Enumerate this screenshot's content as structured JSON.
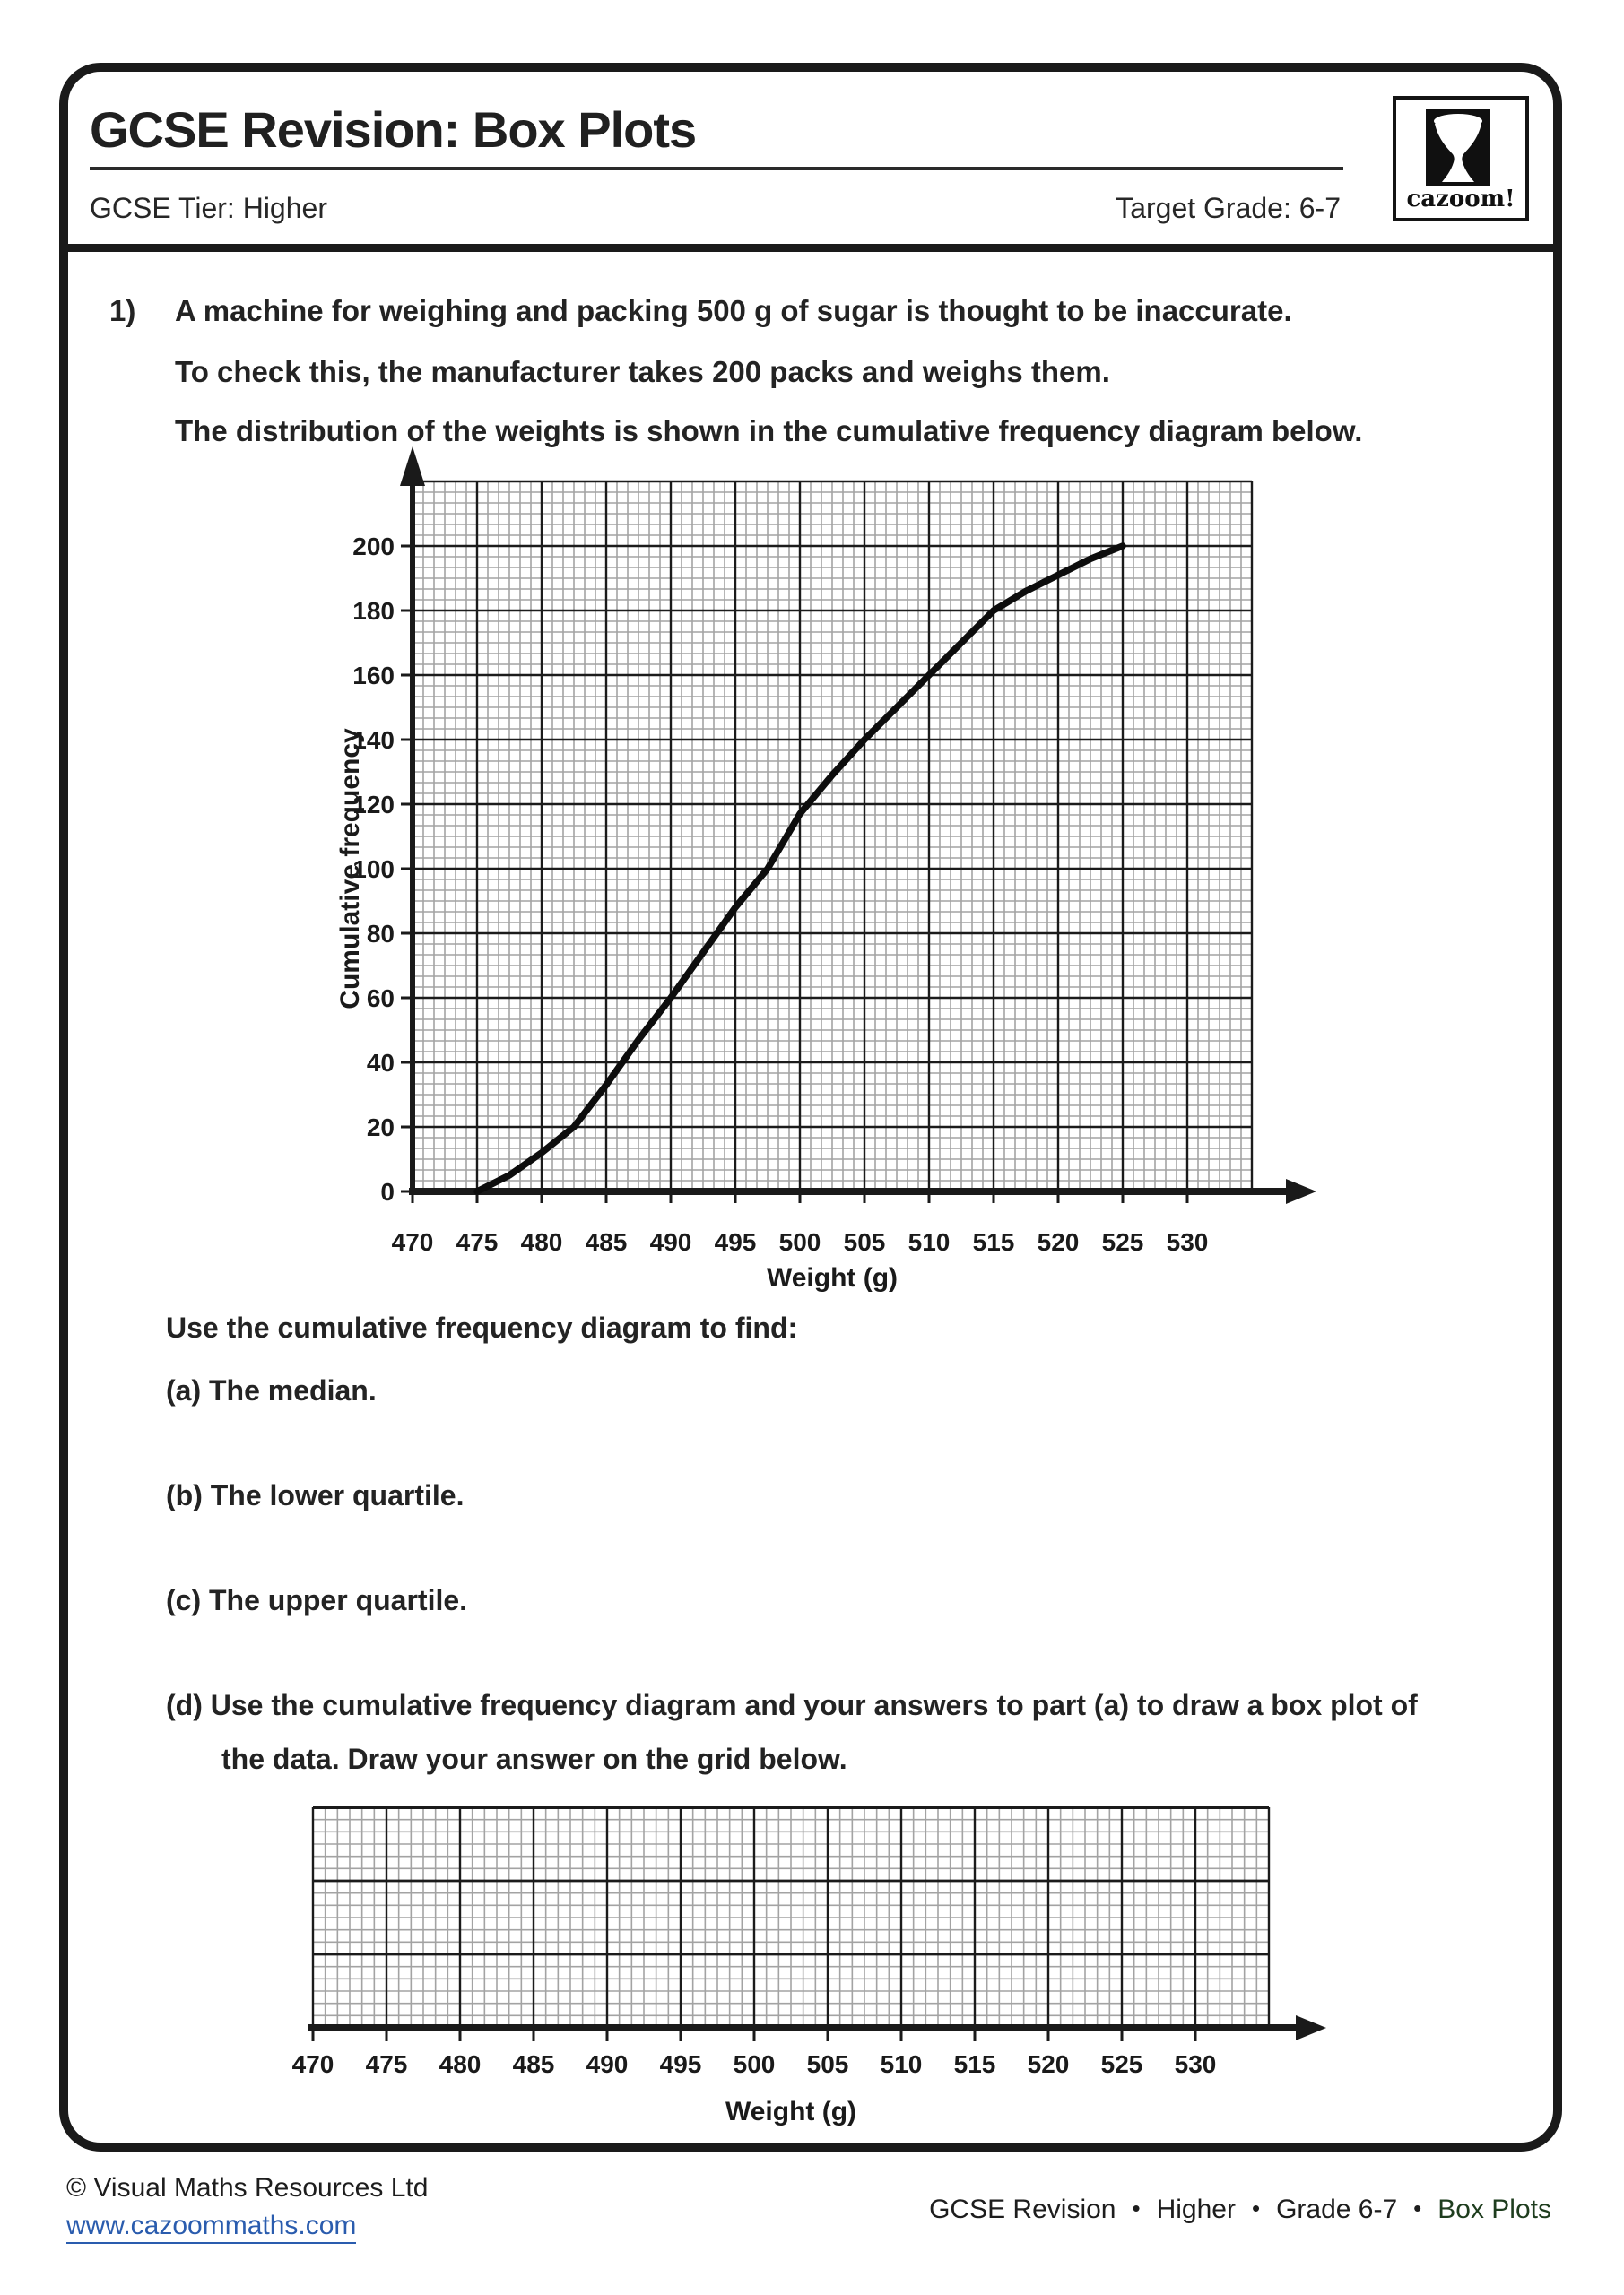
{
  "header": {
    "title": "GCSE Revision: Box Plots",
    "tier": "GCSE Tier: Higher",
    "target": "Target Grade: 6-7",
    "logo_text": "cazoom!",
    "logo_icon": "djembe-drum"
  },
  "question": {
    "number": "1)",
    "line1": "A machine for weighing and packing 500 g of sugar is thought to be inaccurate.",
    "line2": "To check this, the manufacturer takes 200 packs and weighs them.",
    "line3": "The distribution of the weights is shown in the cumulative frequency diagram below."
  },
  "tasks": {
    "intro": "Use the cumulative frequency diagram to find:",
    "a": "(a) The median.",
    "b": "(b) The lower quartile.",
    "c": "(c) The upper quartile.",
    "d_line1": "(d) Use the cumulative frequency diagram and your answers to part (a) to draw a box plot of",
    "d_line2": "the data. Draw your answer on the grid below."
  },
  "chart_data": [
    {
      "type": "line",
      "title": "",
      "xlabel": "Weight (g)",
      "ylabel": "Cumulative frequency",
      "xlim": [
        470,
        535
      ],
      "ylim": [
        0,
        220
      ],
      "x_ticks": [
        470,
        475,
        480,
        485,
        490,
        495,
        500,
        505,
        510,
        515,
        520,
        525,
        530
      ],
      "y_ticks": [
        0,
        20,
        40,
        60,
        80,
        100,
        120,
        140,
        160,
        180,
        200
      ],
      "grid": "graph paper: major lines every 5 g and every 20 units, 6 minor divisions per major",
      "legend": "none",
      "series": [
        {
          "name": "cumulative frequency ogive",
          "x": [
            475,
            477.5,
            480,
            482.5,
            485,
            487.5,
            490,
            492.5,
            495,
            497.5,
            500,
            502.5,
            505,
            507.5,
            510,
            512.5,
            515,
            517.5,
            520,
            522.5,
            525
          ],
          "y": [
            0,
            5,
            12,
            20,
            33,
            47,
            60,
            74,
            88,
            100,
            117,
            129,
            140,
            150,
            160,
            170,
            180,
            186,
            191,
            196,
            200
          ]
        }
      ]
    },
    {
      "type": "blank-grid",
      "purpose": "empty answer grid for drawing the box plot",
      "xlabel": "Weight (g)",
      "xlim": [
        470,
        535
      ],
      "x_ticks": [
        470,
        475,
        480,
        485,
        490,
        495,
        500,
        505,
        510,
        515,
        520,
        525,
        530
      ],
      "y_major_rows": 3,
      "grid": "major lines every 5 g, 6 minor divisions per major"
    }
  ],
  "footer": {
    "copyright": "© Visual Maths Resources Ltd",
    "link": "www.cazoommaths.com",
    "separator": "•",
    "right_parts": [
      "GCSE Revision",
      "Higher",
      "Grade 6-7",
      "Box Plots"
    ]
  },
  "colors": {
    "ink": "#1a1a1a",
    "grid_minor": "#a3a3a3",
    "grid_major": "#1b1b1b",
    "link_blue": "#2a5cae",
    "topic_green": "#1e3d1e"
  }
}
